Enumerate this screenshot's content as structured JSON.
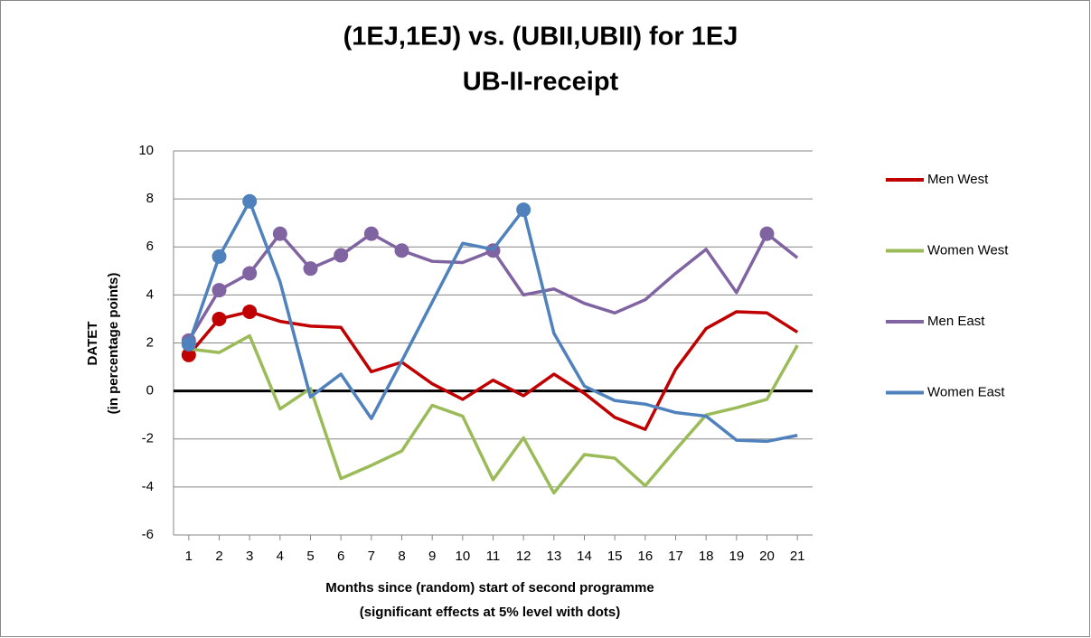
{
  "chart_data": {
    "type": "line",
    "title": [
      "(1EJ,1EJ) vs. (UBII,UBII) for 1EJ",
      "UB-II-receipt"
    ],
    "x_label": [
      "Months since (random) start of second programme",
      "(significant effects at 5% level with dots)"
    ],
    "y_label": [
      "DATET",
      "(in percentage points)"
    ],
    "x": [
      1,
      2,
      3,
      4,
      5,
      6,
      7,
      8,
      9,
      10,
      11,
      12,
      13,
      14,
      15,
      16,
      17,
      18,
      19,
      20,
      21
    ],
    "xlim": [
      0.5,
      21.5
    ],
    "xticks": [
      1,
      2,
      3,
      4,
      5,
      6,
      7,
      8,
      9,
      10,
      11,
      12,
      13,
      14,
      15,
      16,
      17,
      18,
      19,
      20,
      21
    ],
    "ylim": [
      -6,
      10
    ],
    "yticks": [
      -6,
      -4,
      -2,
      0,
      2,
      4,
      6,
      8,
      10
    ],
    "grid": true,
    "legend": "right",
    "series": [
      {
        "name": "Men West",
        "color": "#c00000",
        "values": [
          1.5,
          3.0,
          3.3,
          2.9,
          2.7,
          2.65,
          0.8,
          1.2,
          0.3,
          -0.35,
          0.45,
          -0.2,
          0.7,
          -0.1,
          -1.1,
          -1.6,
          0.9,
          2.6,
          3.3,
          3.25,
          2.45
        ],
        "significant": [
          true,
          true,
          true,
          false,
          false,
          false,
          false,
          false,
          false,
          false,
          false,
          false,
          false,
          false,
          false,
          false,
          false,
          false,
          false,
          false,
          false
        ]
      },
      {
        "name": "Women West",
        "color": "#9bbb59",
        "values": [
          1.75,
          1.6,
          2.3,
          -0.75,
          0.1,
          -3.65,
          -3.1,
          -2.5,
          -0.6,
          -1.05,
          -3.7,
          -1.95,
          -4.25,
          -2.65,
          -2.8,
          -3.95,
          -2.45,
          -1.0,
          -0.7,
          -0.35,
          1.9
        ],
        "significant": [
          false,
          false,
          false,
          false,
          false,
          false,
          false,
          false,
          false,
          false,
          false,
          false,
          false,
          false,
          false,
          false,
          false,
          false,
          false,
          false,
          false
        ]
      },
      {
        "name": "Men East",
        "color": "#8064a2",
        "values": [
          2.1,
          4.2,
          4.9,
          6.55,
          5.1,
          5.65,
          6.55,
          5.85,
          5.4,
          5.35,
          5.85,
          4.0,
          4.25,
          3.65,
          3.25,
          3.8,
          4.9,
          5.9,
          4.1,
          6.55,
          5.55
        ],
        "significant": [
          true,
          true,
          true,
          true,
          true,
          true,
          true,
          true,
          false,
          false,
          true,
          false,
          false,
          false,
          false,
          false,
          false,
          false,
          false,
          true,
          false
        ]
      },
      {
        "name": "Women East",
        "color": "#4f81bd",
        "values": [
          1.95,
          5.6,
          7.9,
          4.55,
          -0.25,
          0.7,
          -1.15,
          1.25,
          3.7,
          6.15,
          5.9,
          7.55,
          2.4,
          0.2,
          -0.4,
          -0.55,
          -0.9,
          -1.05,
          -2.05,
          -2.1,
          -1.85
        ],
        "significant": [
          true,
          true,
          true,
          false,
          false,
          false,
          false,
          false,
          false,
          false,
          false,
          true,
          false,
          false,
          false,
          false,
          false,
          false,
          false,
          false,
          false
        ]
      }
    ]
  }
}
